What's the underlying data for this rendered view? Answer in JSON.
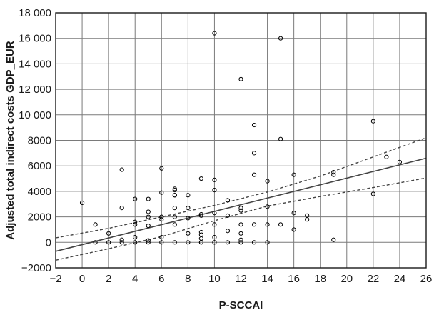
{
  "chart_data": {
    "type": "scatter",
    "xlabel": "P-SCCAI",
    "ylabel": "Adjusted total indirect costs GDP_EUR",
    "xlim": [
      -2,
      26
    ],
    "ylim": [
      -2000,
      18000
    ],
    "x_ticks": [
      -2,
      0,
      2,
      4,
      6,
      8,
      10,
      12,
      14,
      16,
      18,
      20,
      22,
      24,
      26
    ],
    "y_ticks": [
      -2000,
      0,
      2000,
      4000,
      6000,
      8000,
      10000,
      12000,
      14000,
      16000,
      18000
    ],
    "x_tick_labels": [
      "−2",
      "0",
      "2",
      "4",
      "6",
      "8",
      "10",
      "12",
      "14",
      "16",
      "18",
      "20",
      "22",
      "24",
      "26"
    ],
    "y_tick_labels": [
      "−2000",
      "0",
      "2000",
      "4000",
      "6000",
      "8000",
      "10 000",
      "12 000",
      "14 000",
      "16 000",
      "18 000"
    ],
    "grid": true,
    "marker": "open-circle",
    "colors": {
      "axes": "#1a1a1a",
      "grid": "#7a7a7a",
      "points": "#000000",
      "fit_line": "#444444",
      "ci_line": "#444444"
    },
    "series": [
      {
        "kind": "points",
        "x": [
          0,
          1,
          1,
          2,
          2,
          3,
          3,
          3,
          3,
          4,
          4,
          4,
          4,
          4,
          5,
          5,
          5,
          5,
          5,
          5,
          6,
          6,
          6,
          6,
          6,
          6,
          7,
          7,
          7,
          7,
          7,
          7,
          7,
          7,
          8,
          8,
          8,
          8,
          8,
          9,
          9,
          9,
          9,
          9,
          9,
          9,
          9,
          10,
          10,
          10,
          10,
          10,
          10,
          10,
          10,
          11,
          11,
          11,
          11,
          12,
          12,
          12,
          12,
          12,
          12,
          12,
          12,
          13,
          13,
          13,
          13,
          13,
          14,
          14,
          14,
          14,
          15,
          15,
          15,
          16,
          16,
          16,
          17,
          17,
          19,
          19,
          19,
          22,
          22,
          23,
          24
        ],
        "y": [
          3100,
          1400,
          0,
          700,
          0,
          5700,
          2700,
          200,
          0,
          3400,
          1600,
          1400,
          400,
          0,
          3400,
          2400,
          2000,
          1300,
          150,
          0,
          5800,
          3900,
          2000,
          1800,
          400,
          0,
          4200,
          4100,
          3700,
          3700,
          2700,
          2000,
          1400,
          0,
          3700,
          2700,
          1900,
          700,
          0,
          5000,
          2200,
          2100,
          800,
          600,
          300,
          0,
          0,
          16400,
          4900,
          4100,
          2300,
          1400,
          400,
          0,
          0,
          3300,
          2100,
          900,
          0,
          12800,
          2700,
          2500,
          1400,
          700,
          200,
          0,
          0,
          9200,
          7000,
          5300,
          1400,
          0,
          4800,
          2800,
          1400,
          0,
          16000,
          8100,
          1400,
          5300,
          2300,
          1000,
          2100,
          1800,
          5500,
          5300,
          200,
          9500,
          3800,
          6700,
          6300
        ]
      },
      {
        "kind": "regression",
        "x": [
          -2,
          26
        ],
        "y": [
          -700,
          6600
        ]
      },
      {
        "kind": "ci_upper",
        "x": [
          -2,
          2,
          6,
          10,
          14,
          18,
          22,
          26
        ],
        "y": [
          350,
          1100,
          2000,
          2900,
          3950,
          5200,
          6700,
          8200
        ]
      },
      {
        "kind": "ci_lower",
        "x": [
          -2,
          2,
          6,
          10,
          14,
          18,
          22,
          26
        ],
        "y": [
          -1400,
          -500,
          450,
          1700,
          2850,
          3600,
          4300,
          5050
        ]
      }
    ]
  }
}
